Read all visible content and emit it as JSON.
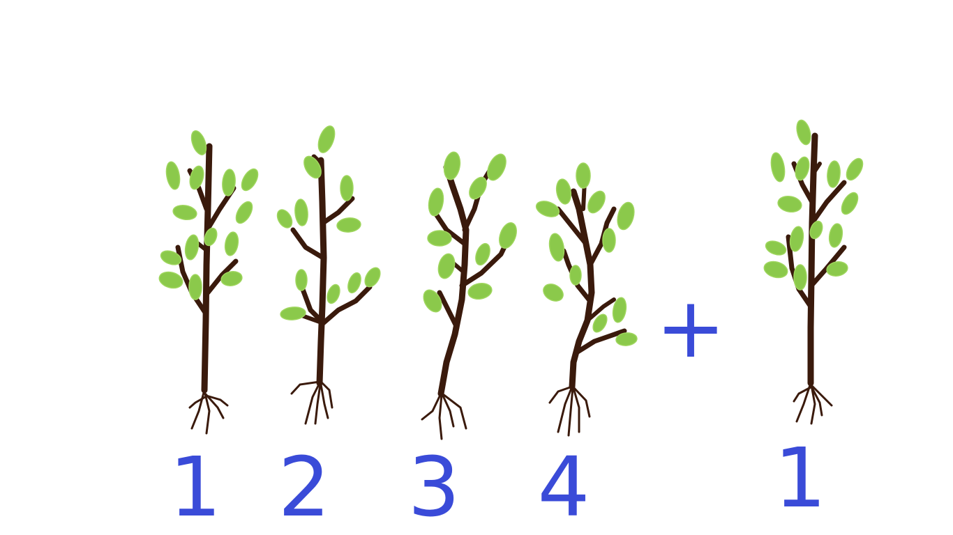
{
  "labels": {
    "tree_1": "1",
    "tree_2": "2",
    "tree_3": "3",
    "tree_4": "4",
    "operator": "+",
    "extra_tree": "1"
  },
  "colors": {
    "trunk": "#3a1a0c",
    "leaf": "#8bc94b",
    "label": "#3a4bd8",
    "background": "#ffffff"
  },
  "counts": {
    "group_trees": 4,
    "extra_trees": 1
  }
}
